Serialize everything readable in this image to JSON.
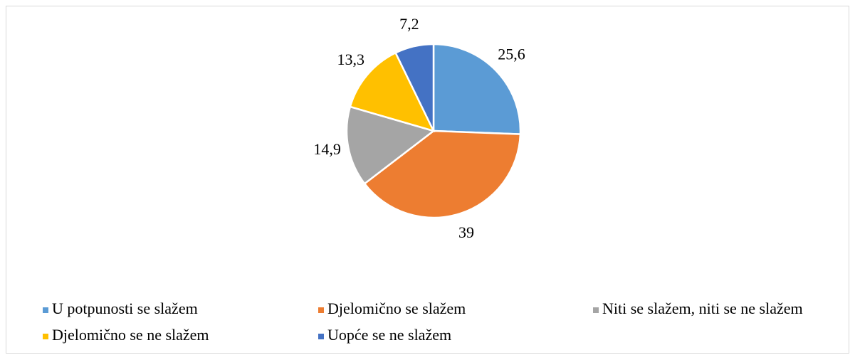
{
  "chart_data": {
    "type": "pie",
    "categories": [
      "U potpunosti se slažem",
      "Djelomično se slažem",
      "Niti se slažem, niti se ne slažem",
      "Djelomično se ne slažem",
      "Uopće se ne slažem"
    ],
    "values": [
      25.6,
      39,
      14.9,
      13.3,
      7.2
    ],
    "value_labels": [
      "25,6",
      "39",
      "14,9",
      "13,3",
      "7,2"
    ],
    "colors": [
      "#5b9bd5",
      "#ed7d31",
      "#a5a5a5",
      "#ffc000",
      "#4472c4"
    ],
    "legend": "bottom"
  }
}
